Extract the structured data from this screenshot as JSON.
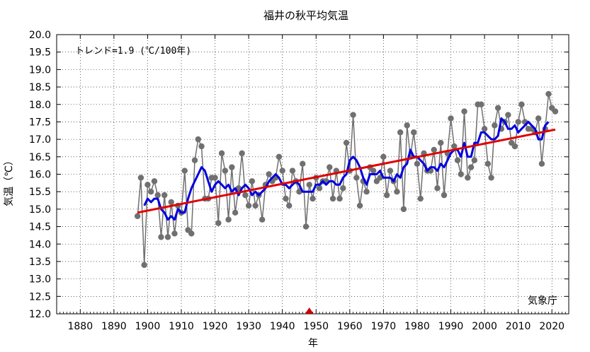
{
  "chart_data": {
    "type": "line",
    "title": "福井の秋平均気温",
    "xlabel": "年",
    "ylabel": "気温（℃）",
    "xlim": [
      1873,
      2025
    ],
    "ylim": [
      12.0,
      20.0
    ],
    "x_ticks": [
      1880,
      1890,
      1900,
      1910,
      1920,
      1930,
      1940,
      1950,
      1960,
      1970,
      1980,
      1990,
      2000,
      2010,
      2020
    ],
    "y_ticks": [
      12.0,
      12.5,
      13.0,
      13.5,
      14.0,
      14.5,
      15.0,
      15.5,
      16.0,
      16.5,
      17.0,
      17.5,
      18.0,
      18.5,
      19.0,
      19.5,
      20.0
    ],
    "y_tick_labels": [
      "12.0",
      "12.5",
      "13.0",
      "13.5",
      "14.0",
      "14.5",
      "15.0",
      "15.5",
      "16.0",
      "16.5",
      "17.0",
      "17.5",
      "18.0",
      "18.5",
      "19.0",
      "19.5",
      "20.0"
    ],
    "grid": true,
    "trend_annotation": "トレンド=1.9 (℃/100年)",
    "credit": "気象庁",
    "marker_year": 1948,
    "colors": {
      "annual": "#707070",
      "annual_marker": "#707070",
      "moving_average": "#0000e0",
      "trend": "#e00000",
      "marker": "#cc0000",
      "grid": "#000000"
    },
    "series": [
      {
        "type": "annual",
        "x": [
          1897,
          1898,
          1899,
          1900,
          1901,
          1902,
          1903,
          1904,
          1905,
          1906,
          1907,
          1908,
          1909,
          1910,
          1911,
          1912,
          1913,
          1914,
          1915,
          1916,
          1917,
          1918,
          1919,
          1920,
          1921,
          1922,
          1923,
          1924,
          1925,
          1926,
          1927,
          1928,
          1929,
          1930,
          1931,
          1932,
          1933,
          1934,
          1935,
          1936,
          1937,
          1938,
          1939,
          1940,
          1941,
          1942,
          1943,
          1944,
          1945,
          1946,
          1947,
          1948,
          1949,
          1950,
          1951,
          1952,
          1953,
          1954,
          1955,
          1956,
          1957,
          1958,
          1959,
          1960,
          1961,
          1962,
          1963,
          1964,
          1965,
          1966,
          1967,
          1968,
          1969,
          1970,
          1971,
          1972,
          1973,
          1974,
          1975,
          1976,
          1977,
          1978,
          1979,
          1980,
          1981,
          1982,
          1983,
          1984,
          1985,
          1986,
          1987,
          1988,
          1989,
          1990,
          1991,
          1992,
          1993,
          1994,
          1995,
          1996,
          1997,
          1998,
          1999,
          2000,
          2001,
          2002,
          2003,
          2004,
          2005,
          2006,
          2007,
          2008,
          2009,
          2010,
          2011,
          2012,
          2013,
          2014,
          2015,
          2016,
          2017,
          2018,
          2019,
          2020,
          2021
        ],
        "values": [
          14.8,
          15.9,
          13.4,
          15.7,
          15.5,
          15.8,
          15.4,
          14.2,
          15.4,
          14.2,
          15.2,
          14.3,
          15.1,
          14.9,
          16.1,
          14.4,
          14.3,
          16.4,
          17.0,
          16.8,
          15.3,
          15.3,
          15.9,
          15.9,
          14.6,
          16.6,
          16.1,
          14.7,
          16.2,
          14.9,
          15.6,
          16.6,
          15.4,
          15.1,
          15.8,
          15.1,
          15.4,
          14.7,
          15.7,
          16.0,
          15.8,
          15.9,
          16.5,
          16.1,
          15.3,
          15.1,
          16.1,
          15.8,
          15.5,
          16.3,
          14.5,
          15.7,
          15.3,
          15.9,
          15.6,
          15.8,
          15.8,
          16.2,
          15.3,
          16.1,
          15.3,
          15.6,
          16.9,
          16.1,
          17.7,
          15.9,
          15.1,
          15.8,
          15.5,
          16.2,
          16.1,
          15.8,
          15.9,
          16.5,
          15.4,
          16.1,
          15.8,
          15.5,
          17.2,
          15.0,
          17.4,
          16.5,
          17.2,
          16.3,
          15.3,
          16.6,
          16.1,
          16.1,
          16.7,
          15.6,
          16.9,
          15.4,
          16.6,
          17.6,
          16.8,
          16.4,
          16.0,
          17.8,
          15.9,
          16.2,
          16.4,
          18.0,
          18.0,
          17.3,
          16.3,
          15.9,
          17.4,
          17.9,
          17.3,
          17.5,
          17.7,
          16.9,
          16.8,
          17.5,
          18.0,
          17.5,
          17.3,
          17.3,
          17.2,
          17.6,
          16.3,
          17.3,
          18.3,
          17.9,
          17.8
        ]
      },
      {
        "type": "moving_average",
        "x": [
          1899,
          1900,
          1901,
          1902,
          1903,
          1904,
          1905,
          1906,
          1907,
          1908,
          1909,
          1910,
          1911,
          1912,
          1913,
          1914,
          1915,
          1916,
          1917,
          1918,
          1919,
          1920,
          1921,
          1922,
          1923,
          1924,
          1925,
          1926,
          1927,
          1928,
          1929,
          1930,
          1931,
          1932,
          1933,
          1934,
          1935,
          1936,
          1937,
          1938,
          1939,
          1940,
          1941,
          1942,
          1943,
          1944,
          1945,
          1946,
          1947,
          1948,
          1949,
          1950,
          1951,
          1952,
          1953,
          1954,
          1955,
          1956,
          1957,
          1958,
          1959,
          1960,
          1961,
          1962,
          1963,
          1964,
          1965,
          1966,
          1967,
          1968,
          1969,
          1970,
          1971,
          1972,
          1973,
          1974,
          1975,
          1976,
          1977,
          1978,
          1979,
          1980,
          1981,
          1982,
          1983,
          1984,
          1985,
          1986,
          1987,
          1988,
          1989,
          1990,
          1991,
          1992,
          1993,
          1994,
          1995,
          1996,
          1997,
          1998,
          1999,
          2000,
          2001,
          2002,
          2003,
          2004,
          2005,
          2006,
          2007,
          2008,
          2009,
          2010,
          2011,
          2012,
          2013,
          2014,
          2015,
          2016,
          2017,
          2018,
          2019
        ],
        "values": [
          15.1,
          15.3,
          15.2,
          15.3,
          15.3,
          15.0,
          14.9,
          14.7,
          14.8,
          14.7,
          15.0,
          14.9,
          14.9,
          15.3,
          15.6,
          15.8,
          16.0,
          16.2,
          16.1,
          15.8,
          15.5,
          15.7,
          15.8,
          15.7,
          15.6,
          15.7,
          15.5,
          15.6,
          15.4,
          15.6,
          15.7,
          15.6,
          15.4,
          15.5,
          15.4,
          15.5,
          15.6,
          15.8,
          15.9,
          16.0,
          15.9,
          15.7,
          15.7,
          15.6,
          15.7,
          15.8,
          15.7,
          15.5,
          15.5,
          15.5,
          15.5,
          15.7,
          15.7,
          15.8,
          15.7,
          15.8,
          15.8,
          15.7,
          15.7,
          15.9,
          16.0,
          16.4,
          16.5,
          16.4,
          16.2,
          15.9,
          15.7,
          16.0,
          16.0,
          16.0,
          16.1,
          15.9,
          15.9,
          15.9,
          15.8,
          16.0,
          15.9,
          16.2,
          16.3,
          16.7,
          16.5,
          16.5,
          16.4,
          16.3,
          16.1,
          16.2,
          16.2,
          16.1,
          16.3,
          16.2,
          16.4,
          16.6,
          16.7,
          16.7,
          16.5,
          16.9,
          16.5,
          16.5,
          16.9,
          16.9,
          17.2,
          17.2,
          17.1,
          17.0,
          17.0,
          17.1,
          17.6,
          17.5,
          17.3,
          17.3,
          17.4,
          17.2,
          17.3,
          17.4,
          17.5,
          17.4,
          17.3,
          17.0,
          17.0,
          17.4,
          17.5
        ]
      },
      {
        "type": "trend",
        "x": [
          1897,
          2021
        ],
        "values": [
          14.9,
          17.28
        ]
      }
    ]
  }
}
